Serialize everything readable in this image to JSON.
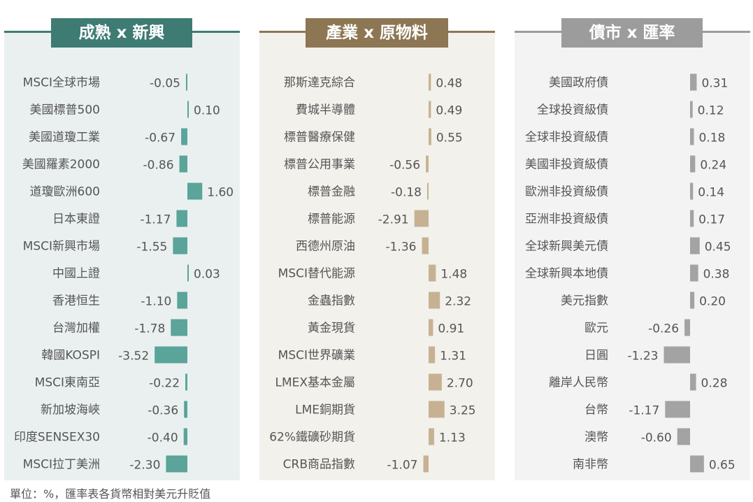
{
  "footnote": "單位：%，匯率表各貨幣相對美元升貶值",
  "chart_data": [
    {
      "type": "bar",
      "orientation": "horizontal",
      "title": "成熟 x 新興",
      "color": "#3e7b73",
      "bar_color": "#5aa49a",
      "categories": [
        "MSCI全球市場",
        "美國標普500",
        "美國道瓊工業",
        "美國羅素2000",
        "道瓊歐洲600",
        "日本東證",
        "MSCI新興市場",
        "中國上證",
        "香港恒生",
        "台灣加權",
        "韓國KOSPI",
        "MSCI東南亞",
        "新加坡海峽",
        "印度SENSEX30",
        "MSCI拉丁美洲"
      ],
      "labels": [
        "-0.05",
        "0.10",
        "-0.67",
        "-0.86",
        "1.60",
        "-1.17",
        "-1.55",
        "0.03",
        "-1.10",
        "-1.78",
        "-3.52",
        "-0.22",
        "-0.36",
        "-0.40",
        "-2.30"
      ],
      "values": [
        -0.05,
        0.1,
        -0.67,
        -0.86,
        1.6,
        -1.17,
        -1.55,
        0.03,
        -1.1,
        -1.78,
        -3.52,
        -0.22,
        -0.36,
        -0.4,
        -2.3
      ]
    },
    {
      "type": "bar",
      "orientation": "horizontal",
      "title": "產業 x 原物料",
      "color": "#8c7653",
      "bar_color": "#c6b293",
      "categories": [
        "那斯達克綜合",
        "費城半導體",
        "標普醫療保健",
        "標普公用事業",
        "標普金融",
        "標普能源",
        "西德州原油",
        "MSCI替代能源",
        "金蟲指數",
        "黃金現貨",
        "MSCI世界礦業",
        "LMEX基本金屬",
        "LME銅期貨",
        "62%鐵礦砂期貨",
        "CRB商品指數"
      ],
      "labels": [
        "0.48",
        "0.49",
        "0.55",
        "-0.56",
        "-0.18",
        "-2.91",
        "-1.36",
        "1.48",
        "2.32",
        "0.91",
        "1.31",
        "2.70",
        "3.25",
        "1.13",
        "-1.07"
      ],
      "values": [
        0.48,
        0.49,
        0.55,
        -0.56,
        -0.18,
        -2.91,
        -1.36,
        1.48,
        2.32,
        0.91,
        1.31,
        2.7,
        3.25,
        1.13,
        -1.07
      ]
    },
    {
      "type": "bar",
      "orientation": "horizontal",
      "title": "債市 x 匯率",
      "color": "#9c9c9c",
      "bar_color": "#a3a3a3",
      "categories": [
        "美國政府債",
        "全球投資級債",
        "全球非投資級債",
        "美國非投資級債",
        "歐洲非投資級債",
        "亞洲非投資級債",
        "全球新興美元債",
        "全球新興本地債",
        "美元指數",
        "歐元",
        "日圓",
        "離岸人民幣",
        "台幣",
        "澳幣",
        "南非幣"
      ],
      "labels": [
        "0.31",
        "0.12",
        "0.18",
        "0.24",
        "0.14",
        "0.17",
        "0.45",
        "0.38",
        "0.20",
        "-0.26",
        "-1.23",
        "0.28",
        "-1.17",
        "-0.60",
        "0.65"
      ],
      "values": [
        0.31,
        0.12,
        0.18,
        0.24,
        0.14,
        0.17,
        0.45,
        0.38,
        0.2,
        -0.26,
        -1.23,
        0.28,
        -1.17,
        -0.6,
        0.65
      ]
    }
  ]
}
